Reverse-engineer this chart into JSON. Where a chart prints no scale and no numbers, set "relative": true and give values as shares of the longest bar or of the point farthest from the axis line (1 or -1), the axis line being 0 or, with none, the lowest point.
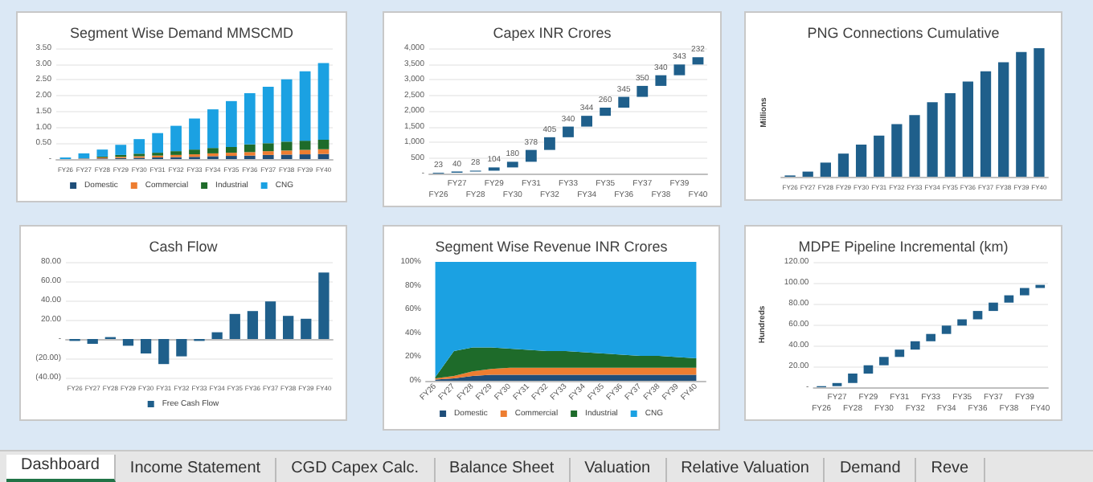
{
  "chart_data": [
    {
      "type": "bar",
      "title": "Segment Wise Demand MMSCMD",
      "stacked": true,
      "grid": "y",
      "legend": "bottom",
      "categories": [
        "FY26",
        "FY27",
        "FY28",
        "FY29",
        "FY30",
        "FY31",
        "FY32",
        "FY33",
        "FY34",
        "FY35",
        "FY36",
        "FY37",
        "FY38",
        "FY39",
        "FY40"
      ],
      "series": [
        {
          "name": "Domestic",
          "color": "#1f4e79",
          "values": [
            0.0,
            0.01,
            0.02,
            0.03,
            0.04,
            0.05,
            0.06,
            0.07,
            0.09,
            0.1,
            0.11,
            0.13,
            0.14,
            0.15,
            0.16
          ]
        },
        {
          "name": "Commercial",
          "color": "#ed7d31",
          "values": [
            0.0,
            0.01,
            0.03,
            0.04,
            0.05,
            0.06,
            0.07,
            0.08,
            0.09,
            0.1,
            0.11,
            0.12,
            0.13,
            0.14,
            0.15
          ]
        },
        {
          "name": "Industrial",
          "color": "#1e6b2a",
          "values": [
            0.0,
            0.0,
            0.03,
            0.06,
            0.08,
            0.09,
            0.12,
            0.15,
            0.17,
            0.18,
            0.24,
            0.25,
            0.28,
            0.29,
            0.3
          ]
        },
        {
          "name": "CNG",
          "color": "#1ba1e2",
          "values": [
            0.05,
            0.16,
            0.22,
            0.32,
            0.46,
            0.62,
            0.8,
            0.98,
            1.22,
            1.45,
            1.62,
            1.78,
            1.97,
            2.19,
            2.42
          ]
        }
      ],
      "ylim": [
        0,
        3.5
      ],
      "yticks": [
        {
          "value": 0,
          "label": "-"
        },
        {
          "value": 0.5,
          "label": "0.50"
        },
        {
          "value": 1,
          "label": "1.00"
        },
        {
          "value": 1.5,
          "label": "1.50"
        },
        {
          "value": 2,
          "label": "2.00"
        },
        {
          "value": 2.5,
          "label": "2.50"
        },
        {
          "value": 3,
          "label": "3.00"
        },
        {
          "value": 3.5,
          "label": "3.50"
        }
      ]
    },
    {
      "type": "bar",
      "title": "Capex INR Crores",
      "grid": "y",
      "data_labels": true,
      "categories": [
        "FY26",
        "FY27",
        "FY28",
        "FY29",
        "FY30",
        "FY31",
        "FY32",
        "FY33",
        "FY34",
        "FY35",
        "FY36",
        "FY37",
        "FY38",
        "FY39",
        "FY40"
      ],
      "values": [
        23,
        40,
        28,
        104,
        180,
        378,
        405,
        340,
        344,
        260,
        345,
        350,
        340,
        343,
        232
      ],
      "base": [
        0,
        23,
        63,
        91,
        195,
        375,
        753,
        1158,
        1498,
        1842,
        2102,
        2447,
        2797,
        3137,
        3480
      ],
      "color": "#1f5f8b",
      "ylim": [
        0,
        4000
      ],
      "yticks": [
        {
          "value": 0,
          "label": "-"
        },
        500,
        {
          "value": 1000,
          "label": "1,000"
        },
        {
          "value": 1500,
          "label": "1,500"
        },
        {
          "value": 2000,
          "label": "2,000"
        },
        {
          "value": 2500,
          "label": "2,500"
        },
        {
          "value": 3000,
          "label": "3,000"
        },
        {
          "value": 3500,
          "label": "3,500"
        },
        {
          "value": 4000,
          "label": "4,000"
        }
      ]
    },
    {
      "type": "bar",
      "title": "PNG Connections Cumulative",
      "ylabel": "Millions",
      "relative": true,
      "categories": [
        "FY26",
        "FY27",
        "FY28",
        "FY29",
        "FY30",
        "FY31",
        "FY32",
        "FY33",
        "FY34",
        "FY35",
        "FY36",
        "FY37",
        "FY38",
        "FY39",
        "FY40"
      ],
      "values": [
        0.01,
        0.04,
        0.11,
        0.18,
        0.25,
        0.32,
        0.41,
        0.48,
        0.58,
        0.65,
        0.74,
        0.82,
        0.89,
        0.97,
        1
      ],
      "color": "#1f5f8b"
    },
    {
      "type": "bar",
      "title": "Cash Flow",
      "grid": "y",
      "legend": "bottom",
      "categories": [
        "FY26",
        "FY27",
        "FY28",
        "FY29",
        "FY30",
        "FY31",
        "FY32",
        "FY33",
        "FY34",
        "FY35",
        "FY36",
        "FY37",
        "FY38",
        "FY39",
        "FY40"
      ],
      "series": [
        {
          "name": "Free Cash Flow",
          "color": "#1f5f8b",
          "values": [
            -2,
            -5,
            2,
            -7,
            -15,
            -26,
            -18,
            -2,
            7,
            26,
            29,
            39,
            24,
            21,
            69
          ]
        }
      ],
      "ylim": [
        -40,
        80
      ],
      "yticks": [
        {
          "value": -40,
          "label": "(40.00)"
        },
        {
          "value": -20,
          "label": "(20.00)"
        },
        {
          "value": 0,
          "label": "-"
        },
        {
          "value": 20,
          "label": "20.00"
        },
        {
          "value": 40,
          "label": "40.00"
        },
        {
          "value": 60,
          "label": "60.00"
        },
        {
          "value": 80,
          "label": "80.00"
        }
      ]
    },
    {
      "type": "area",
      "title": "Segment Wise Revenue INR Crores",
      "stacked": true,
      "legend": "bottom",
      "categories": [
        "FY26",
        "FY27",
        "FY28",
        "FY29",
        "FY30",
        "FY31",
        "FY32",
        "FY33",
        "FY34",
        "FY35",
        "FY36",
        "FY37",
        "FY38",
        "FY39",
        "FY40"
      ],
      "series": [
        {
          "name": "Domestic",
          "color": "#1f4e79",
          "values": [
            1,
            2,
            4,
            5,
            5,
            5,
            5,
            5,
            5,
            5,
            5,
            5,
            5,
            5,
            5
          ]
        },
        {
          "name": "Commercial",
          "color": "#ed7d31",
          "values": [
            1,
            2,
            4,
            5,
            6,
            6,
            6,
            6,
            6,
            6,
            6,
            6,
            6,
            6,
            6
          ]
        },
        {
          "name": "Industrial",
          "color": "#1e6b2a",
          "values": [
            1,
            21,
            20,
            18,
            16,
            15,
            14,
            14,
            13,
            12,
            11,
            10,
            10,
            9,
            8
          ]
        },
        {
          "name": "CNG",
          "color": "#1ba1e2",
          "values": [
            97,
            75,
            72,
            72,
            73,
            74,
            75,
            75,
            76,
            77,
            78,
            79,
            79,
            80,
            81
          ]
        }
      ],
      "ylim": [
        0,
        100
      ],
      "yticks": [
        {
          "value": 0,
          "label": "0%"
        },
        {
          "value": 20,
          "label": "20%"
        },
        {
          "value": 40,
          "label": "40%"
        },
        {
          "value": 60,
          "label": "60%"
        },
        {
          "value": 80,
          "label": "80%"
        },
        {
          "value": 100,
          "label": "100%"
        }
      ]
    },
    {
      "type": "bar",
      "title": "MDPE Pipeline Incremental (km)",
      "ylabel": "Hundreds",
      "grid": "y",
      "categories": [
        "FY26",
        "FY27",
        "FY28",
        "FY29",
        "FY30",
        "FY31",
        "FY32",
        "FY33",
        "FY34",
        "FY35",
        "FY36",
        "FY37",
        "FY38",
        "FY39",
        "FY40"
      ],
      "values": [
        1,
        3,
        9,
        8,
        8,
        7,
        8,
        7,
        8,
        6,
        8,
        8,
        7,
        7,
        3
      ],
      "base": [
        0,
        1,
        4,
        13,
        21,
        29,
        36,
        44,
        51,
        59,
        65,
        73,
        81,
        88,
        95
      ],
      "color": "#1f5f8b",
      "ylim": [
        0,
        120
      ],
      "yticks": [
        {
          "value": 0,
          "label": "-"
        },
        {
          "value": 20,
          "label": "20.00"
        },
        {
          "value": 40,
          "label": "40.00"
        },
        {
          "value": 60,
          "label": "60.00"
        },
        {
          "value": 80,
          "label": "80.00"
        },
        {
          "value": 100,
          "label": "100.00"
        },
        {
          "value": 120,
          "label": "120.00"
        }
      ]
    },
    {
      "type": "other",
      "annotations": [
        "Dashboard",
        "Income Statement",
        "CGD Capex Calc.",
        "Balance Sheet",
        "Valuation",
        "Relative Valuation",
        "Demand",
        "Reve"
      ]
    }
  ]
}
